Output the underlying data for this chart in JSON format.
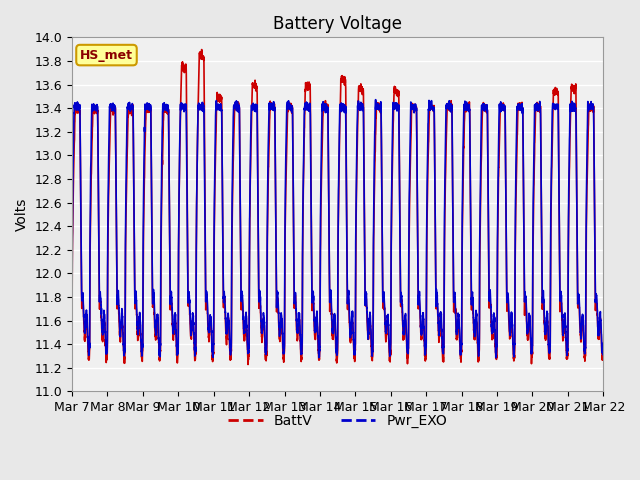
{
  "title": "Battery Voltage",
  "ylabel": "Volts",
  "xlabel": "",
  "ylim": [
    11.0,
    14.0
  ],
  "yticks": [
    11.0,
    11.2,
    11.4,
    11.6,
    11.8,
    12.0,
    12.2,
    12.4,
    12.6,
    12.8,
    13.0,
    13.2,
    13.4,
    13.6,
    13.8,
    14.0
  ],
  "xtick_labels": [
    "Mar 7",
    "Mar 8",
    "Mar 9",
    "Mar 10",
    "Mar 11",
    "Mar 12",
    "Mar 13",
    "Mar 14",
    "Mar 15",
    "Mar 16",
    "Mar 17",
    "Mar 18",
    "Mar 19",
    "Mar 20",
    "Mar 21",
    "Mar 22"
  ],
  "line1_color": "#cc0000",
  "line2_color": "#0000cc",
  "line1_label": "BattV",
  "line2_label": "Pwr_EXO",
  "annotation_text": "HS_met",
  "annotation_bg": "#ffff99",
  "annotation_border": "#cc9900",
  "bg_color": "#e8e8e8",
  "plot_bg": "#f0f0f0",
  "grid_color": "#ffffff",
  "linewidth": 1.2,
  "title_fontsize": 12,
  "label_fontsize": 10,
  "tick_fontsize": 9
}
